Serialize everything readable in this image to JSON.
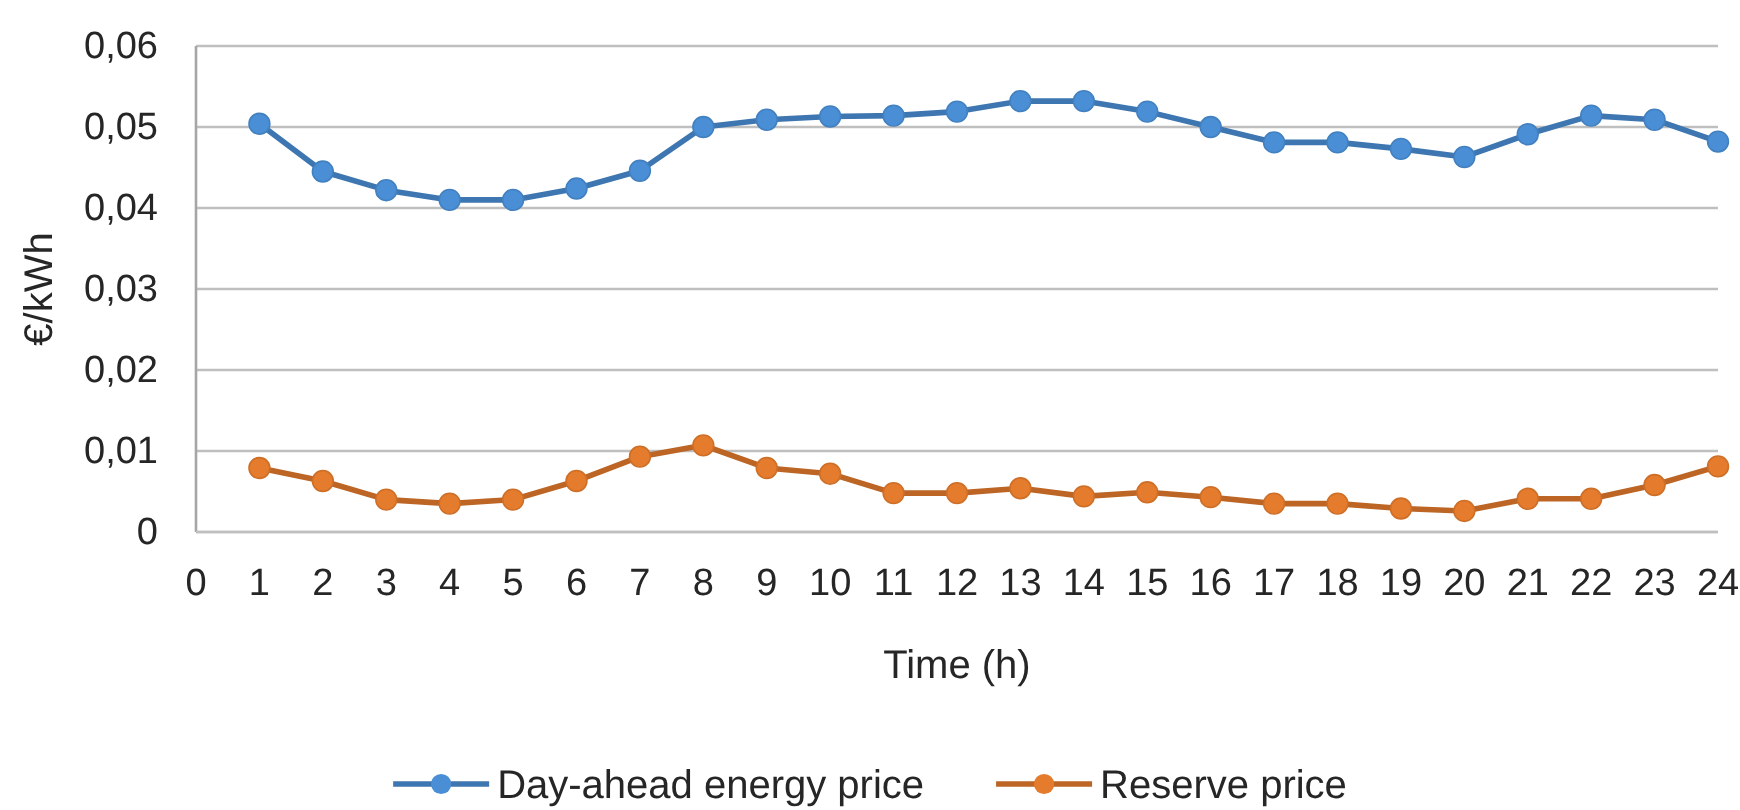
{
  "chart_data": {
    "type": "line",
    "xlabel": "Time (h)",
    "ylabel": "€/kWh",
    "x": [
      1,
      2,
      3,
      4,
      5,
      6,
      7,
      8,
      9,
      10,
      11,
      12,
      13,
      14,
      15,
      16,
      17,
      18,
      19,
      20,
      21,
      22,
      23,
      24
    ],
    "series": [
      {
        "name": "Day-ahead energy price",
        "color": "#4a8fd6",
        "values": [
          0.0504,
          0.0445,
          0.0422,
          0.041,
          0.041,
          0.0424,
          0.0446,
          0.05,
          0.0509,
          0.0513,
          0.0514,
          0.0519,
          0.0532,
          0.0532,
          0.0519,
          0.05,
          0.0481,
          0.0481,
          0.0473,
          0.0463,
          0.0491,
          0.0514,
          0.0509,
          0.0482
        ]
      },
      {
        "name": "Reserve price",
        "color": "#e57b2c",
        "values": [
          0.0079,
          0.0063,
          0.004,
          0.0035,
          0.004,
          0.0063,
          0.0093,
          0.0107,
          0.0079,
          0.0072,
          0.0048,
          0.0048,
          0.0054,
          0.0044,
          0.0049,
          0.0043,
          0.0035,
          0.0035,
          0.0029,
          0.0026,
          0.0041,
          0.0041,
          0.0058,
          0.0081
        ]
      }
    ],
    "xlim": [
      0,
      24
    ],
    "xticks": [
      0,
      1,
      2,
      3,
      4,
      5,
      6,
      7,
      8,
      9,
      10,
      11,
      12,
      13,
      14,
      15,
      16,
      17,
      18,
      19,
      20,
      21,
      22,
      23,
      24
    ],
    "ylim": [
      0,
      0.06
    ],
    "yticks": [
      0,
      {
        "value": 0.01,
        "label": "0,01"
      },
      {
        "value": 0.02,
        "label": "0,02"
      },
      {
        "value": 0.03,
        "label": "0,03"
      },
      {
        "value": 0.04,
        "label": "0,04"
      },
      {
        "value": 0.05,
        "label": "0,05"
      },
      {
        "value": 0.06,
        "label": "0,06"
      }
    ],
    "grid": "y",
    "legend": "bottom",
    "marker": "circle",
    "line_style": "solid"
  }
}
